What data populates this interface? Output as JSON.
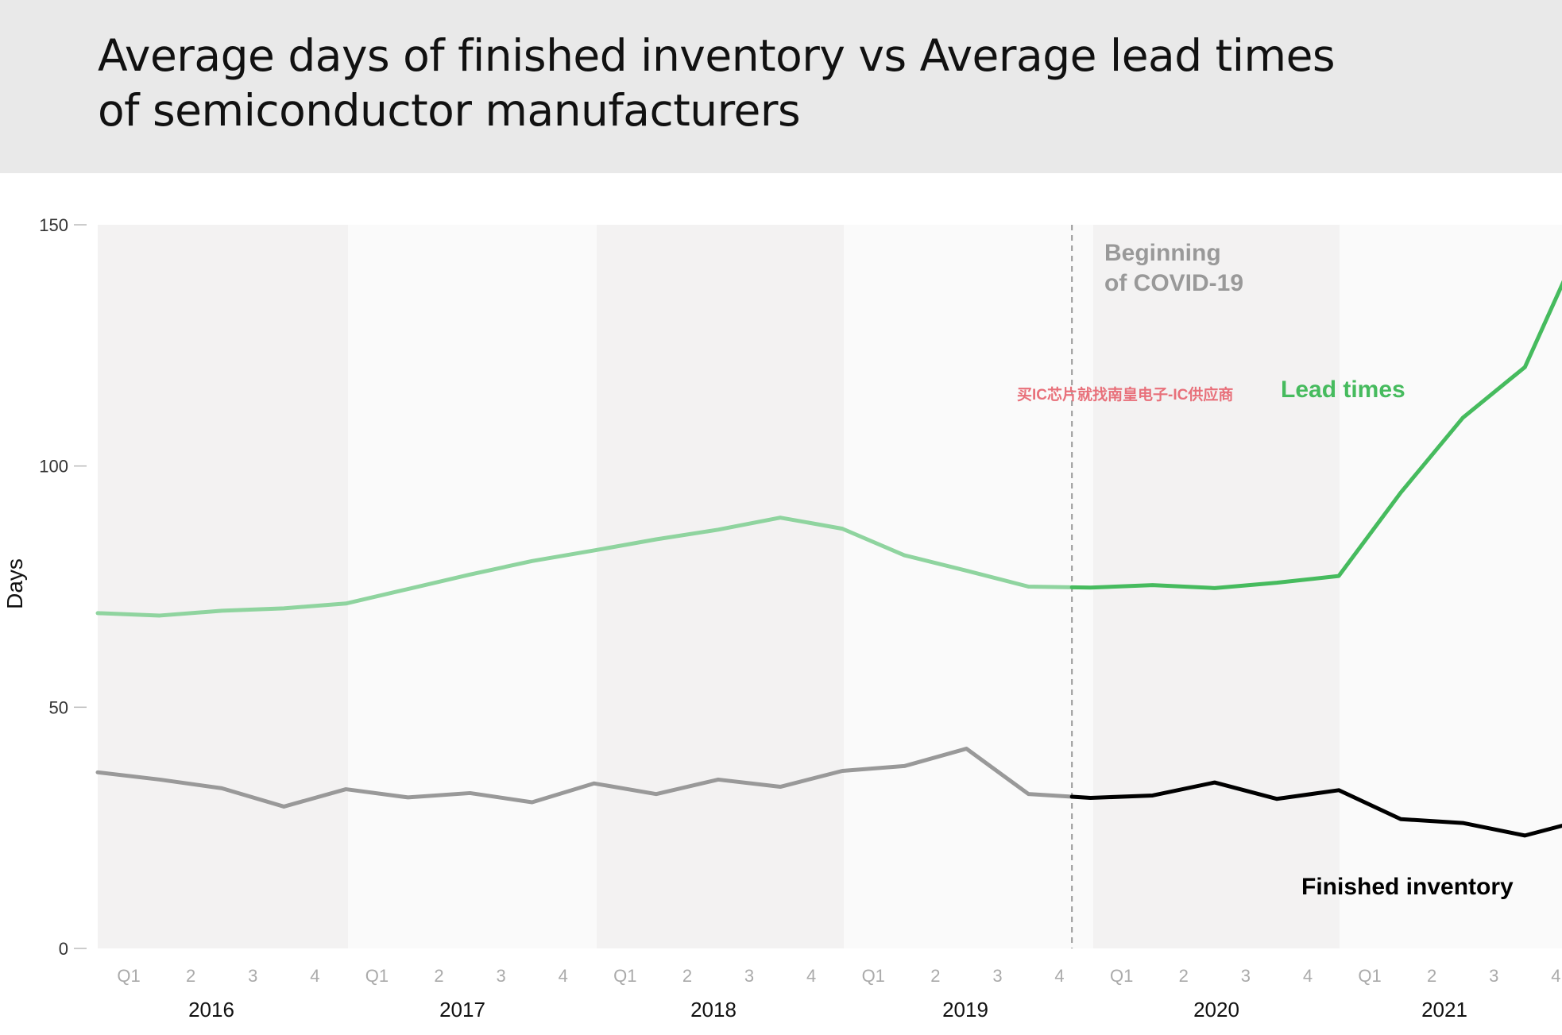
{
  "title": {
    "line1": "Average days of finished inventory vs Average lead times",
    "line2": "of semiconductor manufacturers"
  },
  "chart_data": {
    "type": "line",
    "ylabel": "Days",
    "ylim": [
      0,
      150
    ],
    "yticks": [
      0,
      50,
      100,
      150
    ],
    "grid": false,
    "x_quarter_labels": [
      "Q1",
      "2",
      "3",
      "4",
      "Q1",
      "2",
      "3",
      "4",
      "Q1",
      "2",
      "3",
      "4",
      "Q1",
      "2",
      "3",
      "4",
      "Q1",
      "2",
      "3",
      "4",
      "Q1",
      "2",
      "3",
      "4"
    ],
    "years": [
      "2016",
      "2017",
      "2018",
      "2019",
      "2020",
      "2021"
    ],
    "series": [
      {
        "name": "Lead times",
        "color": "#46bb5e",
        "color_pre_covid": "#8fd49f",
        "values": [
          69.5,
          69.0,
          70.0,
          70.5,
          71.5,
          74.5,
          77.5,
          80.3,
          82.5,
          84.8,
          86.8,
          89.3,
          87.0,
          81.5,
          78.3,
          75.0,
          74.8,
          75.3,
          74.7,
          75.8,
          77.2,
          94.5,
          110.0,
          120.5,
          149.0
        ]
      },
      {
        "name": "Finished inventory",
        "color": "#000000",
        "color_pre_covid": "#999999",
        "values": [
          36.5,
          35.0,
          33.2,
          29.4,
          33.0,
          31.3,
          32.2,
          30.3,
          34.2,
          32.0,
          35.0,
          33.5,
          36.8,
          37.8,
          41.4,
          32.0,
          31.2,
          31.7,
          34.4,
          31.0,
          32.8,
          26.8,
          26.0,
          23.4,
          26.8
        ]
      }
    ],
    "covid_start_index": 15.7,
    "annotations": {
      "covid_line1": "Beginning",
      "covid_line2": "of COVID-19",
      "lead_label": "Lead times",
      "inventory_label": "Finished inventory",
      "watermark": "买IC芯片就找南皇电子-IC供应商"
    }
  }
}
